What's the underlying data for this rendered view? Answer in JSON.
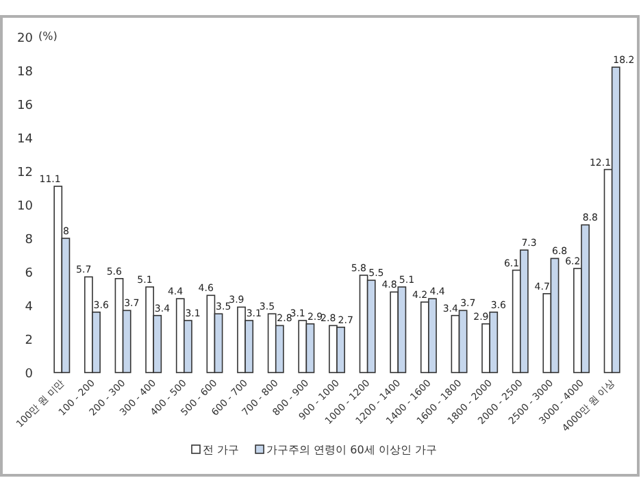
{
  "chart_data": {
    "type": "bar",
    "categories": [
      "100만 원 미만",
      "100 - 200",
      "200 - 300",
      "300 - 400",
      "400 - 500",
      "500 - 600",
      "600 - 700",
      "700 - 800",
      "800 - 900",
      "900 - 1000",
      "1000 - 1200",
      "1200 - 1400",
      "1400 - 1600",
      "1600 - 1800",
      "1800 - 2000",
      "2000 - 2500",
      "2500 - 3000",
      "3000 - 4000",
      "4000만 원 이상"
    ],
    "series": [
      {
        "name": "전 가구",
        "color": "#ffffff",
        "values": [
          11.1,
          5.7,
          5.6,
          5.1,
          4.4,
          4.6,
          3.9,
          3.5,
          3.1,
          2.8,
          5.8,
          4.8,
          4.2,
          3.4,
          2.9,
          6.1,
          4.7,
          6.2,
          12.1
        ]
      },
      {
        "name": "가구주의 연령이 60세 이상인 가구",
        "color": "#c5d6ec",
        "values": [
          8,
          3.6,
          3.7,
          3.4,
          3.1,
          3.5,
          3.1,
          2.8,
          2.9,
          2.7,
          5.5,
          5.1,
          4.4,
          3.7,
          3.6,
          7.3,
          6.8,
          8.8,
          18.2
        ]
      }
    ],
    "ylim": [
      0,
      20
    ],
    "yticks": [
      0,
      2,
      4,
      6,
      8,
      10,
      12,
      14,
      16,
      18,
      20
    ],
    "data_labels": true,
    "legend": "bottom",
    "grid": false,
    "annotations": [
      "(%)"
    ]
  }
}
